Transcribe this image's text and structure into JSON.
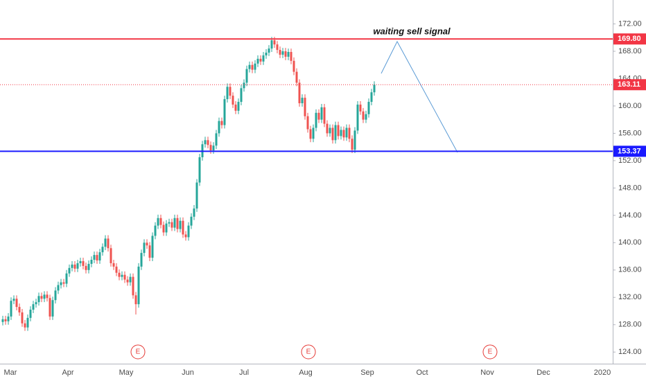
{
  "chart_data": {
    "type": "candlestick",
    "values": [
      [
        128.4,
        129.3,
        127.9,
        128.8
      ],
      [
        128.8,
        129.3,
        128.0,
        128.5
      ],
      [
        128.5,
        129.7,
        128.0,
        129.2
      ],
      [
        129.2,
        132.0,
        128.7,
        131.5
      ],
      [
        131.5,
        132.3,
        131.0,
        131.8
      ],
      [
        131.8,
        132.3,
        130.1,
        130.6
      ],
      [
        130.6,
        131.1,
        129.3,
        129.8
      ],
      [
        129.8,
        130.3,
        127.7,
        128.2
      ],
      [
        128.2,
        128.7,
        127.1,
        127.6
      ],
      [
        127.6,
        129.5,
        127.1,
        129.0
      ],
      [
        129.0,
        130.7,
        128.5,
        130.2
      ],
      [
        130.2,
        131.5,
        129.7,
        131.0
      ],
      [
        131.0,
        131.8,
        130.5,
        131.3
      ],
      [
        131.3,
        132.7,
        130.8,
        132.2
      ],
      [
        132.2,
        132.7,
        131.3,
        131.8
      ],
      [
        131.8,
        132.9,
        131.3,
        132.4
      ],
      [
        132.4,
        132.9,
        131.4,
        131.9
      ],
      [
        131.9,
        132.4,
        128.7,
        129.2
      ],
      [
        129.2,
        132.1,
        128.7,
        131.6
      ],
      [
        131.6,
        133.5,
        131.1,
        133.0
      ],
      [
        133.0,
        134.3,
        132.5,
        133.8
      ],
      [
        133.8,
        134.7,
        133.3,
        134.2
      ],
      [
        134.2,
        134.7,
        133.5,
        134.0
      ],
      [
        134.0,
        136.0,
        133.5,
        135.5
      ],
      [
        135.5,
        136.8,
        135.0,
        136.3
      ],
      [
        136.3,
        137.3,
        135.8,
        136.8
      ],
      [
        136.8,
        137.3,
        135.7,
        136.2
      ],
      [
        136.2,
        137.5,
        135.7,
        137.0
      ],
      [
        137.0,
        137.8,
        136.5,
        137.3
      ],
      [
        137.3,
        137.8,
        136.1,
        136.6
      ],
      [
        136.6,
        137.1,
        135.5,
        136.0
      ],
      [
        136.0,
        137.4,
        135.5,
        136.9
      ],
      [
        136.9,
        138.0,
        136.4,
        137.5
      ],
      [
        137.5,
        138.7,
        137.0,
        138.2
      ],
      [
        138.2,
        138.7,
        136.9,
        137.4
      ],
      [
        137.4,
        139.1,
        136.9,
        138.6
      ],
      [
        138.6,
        139.9,
        138.1,
        139.4
      ],
      [
        139.4,
        141.1,
        138.9,
        140.6
      ],
      [
        140.6,
        141.1,
        138.7,
        139.2
      ],
      [
        139.2,
        139.7,
        136.5,
        137.0
      ],
      [
        137.0,
        137.5,
        136.0,
        136.5
      ],
      [
        136.5,
        137.0,
        135.1,
        135.6
      ],
      [
        135.6,
        136.1,
        134.5,
        135.0
      ],
      [
        135.0,
        135.8,
        134.5,
        135.3
      ],
      [
        135.3,
        135.8,
        134.1,
        134.6
      ],
      [
        134.6,
        135.1,
        133.7,
        134.2
      ],
      [
        134.2,
        135.5,
        133.7,
        135.0
      ],
      [
        135.0,
        135.5,
        131.8,
        132.3
      ],
      [
        132.3,
        132.8,
        129.5,
        131.0
      ],
      [
        131.0,
        137.0,
        130.5,
        136.5
      ],
      [
        136.5,
        139.0,
        136.0,
        138.5
      ],
      [
        138.5,
        140.5,
        138.0,
        140.0
      ],
      [
        140.0,
        140.5,
        139.1,
        139.6
      ],
      [
        139.6,
        140.1,
        137.3,
        137.8
      ],
      [
        137.8,
        141.5,
        137.3,
        141.0
      ],
      [
        141.0,
        143.0,
        140.5,
        142.5
      ],
      [
        142.5,
        144.1,
        142.0,
        143.6
      ],
      [
        143.6,
        144.1,
        142.1,
        142.6
      ],
      [
        142.6,
        143.1,
        141.0,
        141.5
      ],
      [
        141.5,
        143.3,
        141.0,
        142.8
      ],
      [
        142.8,
        143.5,
        142.3,
        143.0
      ],
      [
        143.0,
        143.5,
        141.7,
        142.2
      ],
      [
        142.2,
        144.1,
        141.7,
        143.6
      ],
      [
        143.6,
        144.1,
        141.5,
        142.0
      ],
      [
        142.0,
        143.7,
        141.5,
        143.2
      ],
      [
        143.2,
        143.7,
        140.7,
        141.2
      ],
      [
        141.2,
        141.7,
        140.3,
        140.8
      ],
      [
        140.8,
        143.0,
        140.3,
        142.5
      ],
      [
        142.5,
        144.3,
        142.0,
        143.8
      ],
      [
        143.8,
        145.5,
        143.3,
        145.0
      ],
      [
        145.0,
        149.3,
        144.5,
        148.8
      ],
      [
        148.8,
        153.0,
        148.3,
        152.5
      ],
      [
        152.5,
        154.9,
        152.0,
        154.4
      ],
      [
        154.4,
        155.5,
        153.9,
        155.0
      ],
      [
        155.0,
        155.5,
        153.8,
        154.3
      ],
      [
        154.3,
        154.8,
        153.0,
        153.5
      ],
      [
        153.5,
        154.7,
        153.0,
        154.2
      ],
      [
        154.2,
        156.5,
        153.7,
        156.0
      ],
      [
        156.0,
        158.3,
        155.5,
        157.8
      ],
      [
        157.8,
        158.3,
        156.7,
        157.2
      ],
      [
        157.2,
        161.5,
        156.7,
        161.0
      ],
      [
        161.0,
        163.3,
        160.5,
        162.8
      ],
      [
        162.8,
        163.3,
        161.0,
        161.5
      ],
      [
        161.5,
        162.0,
        159.7,
        160.2
      ],
      [
        160.2,
        160.7,
        158.8,
        159.3
      ],
      [
        159.3,
        161.1,
        158.8,
        160.6
      ],
      [
        160.6,
        163.1,
        160.1,
        162.6
      ],
      [
        162.6,
        163.9,
        162.1,
        163.4
      ],
      [
        163.4,
        165.9,
        162.9,
        165.4
      ],
      [
        165.4,
        166.5,
        164.9,
        166.0
      ],
      [
        166.0,
        166.5,
        164.8,
        165.3
      ],
      [
        165.3,
        166.7,
        164.8,
        166.2
      ],
      [
        166.2,
        167.4,
        165.7,
        166.9
      ],
      [
        166.9,
        167.4,
        166.0,
        166.5
      ],
      [
        166.5,
        167.9,
        166.0,
        167.4
      ],
      [
        167.4,
        168.3,
        166.9,
        167.8
      ],
      [
        167.8,
        168.9,
        167.3,
        168.4
      ],
      [
        168.4,
        170.1,
        167.9,
        169.6
      ],
      [
        169.6,
        170.1,
        168.5,
        169.0
      ],
      [
        169.0,
        169.5,
        167.7,
        168.2
      ],
      [
        168.2,
        168.7,
        167.0,
        167.5
      ],
      [
        167.5,
        168.5,
        167.0,
        168.0
      ],
      [
        168.0,
        168.5,
        166.7,
        167.2
      ],
      [
        167.2,
        168.4,
        166.7,
        167.9
      ],
      [
        167.9,
        168.4,
        166.1,
        166.6
      ],
      [
        166.6,
        167.1,
        164.5,
        165.0
      ],
      [
        165.0,
        165.5,
        162.9,
        163.4
      ],
      [
        163.4,
        163.9,
        159.9,
        160.4
      ],
      [
        160.4,
        161.7,
        159.9,
        161.2
      ],
      [
        161.2,
        161.7,
        158.0,
        158.5
      ],
      [
        158.5,
        159.0,
        156.1,
        156.6
      ],
      [
        156.6,
        157.1,
        154.7,
        155.2
      ],
      [
        155.2,
        157.3,
        154.7,
        156.8
      ],
      [
        156.8,
        159.5,
        156.3,
        159.0
      ],
      [
        159.0,
        159.5,
        157.5,
        158.0
      ],
      [
        158.0,
        160.3,
        157.5,
        159.8
      ],
      [
        159.8,
        160.3,
        156.9,
        157.4
      ],
      [
        157.4,
        157.9,
        155.5,
        156.0
      ],
      [
        156.0,
        157.3,
        155.5,
        156.8
      ],
      [
        156.8,
        157.3,
        154.5,
        155.0
      ],
      [
        155.0,
        157.7,
        154.5,
        157.2
      ],
      [
        157.2,
        157.7,
        155.1,
        155.6
      ],
      [
        155.6,
        157.0,
        155.1,
        156.5
      ],
      [
        156.5,
        157.0,
        154.9,
        155.4
      ],
      [
        155.4,
        157.3,
        154.9,
        156.8
      ],
      [
        156.8,
        157.3,
        154.7,
        155.2
      ],
      [
        155.2,
        155.7,
        153.1,
        153.6
      ],
      [
        153.6,
        156.9,
        153.1,
        156.4
      ],
      [
        156.4,
        160.7,
        155.9,
        160.2
      ],
      [
        160.2,
        160.7,
        158.7,
        159.2
      ],
      [
        159.2,
        159.7,
        157.5,
        158.0
      ],
      [
        158.0,
        159.3,
        157.5,
        158.8
      ],
      [
        158.8,
        161.1,
        158.3,
        160.6
      ],
      [
        160.6,
        162.5,
        160.1,
        162.0
      ],
      [
        162.0,
        163.6,
        161.5,
        163.11
      ]
    ],
    "up_color": "#26a69a",
    "down_color": "#ef5350",
    "ylim": [
      122.3,
      175.5
    ],
    "yticks": [
      {
        "value": 124,
        "label": "124.00"
      },
      {
        "value": 128,
        "label": "128.00"
      },
      {
        "value": 132,
        "label": "132.00"
      },
      {
        "value": 136,
        "label": "136.00"
      },
      {
        "value": 140,
        "label": "140.00"
      },
      {
        "value": 144,
        "label": "144.00"
      },
      {
        "value": 148,
        "label": "148.00"
      },
      {
        "value": 152,
        "label": "152.00"
      },
      {
        "value": 156,
        "label": "156.00"
      },
      {
        "value": 160,
        "label": "160.00"
      },
      {
        "value": 164,
        "label": "164.00"
      },
      {
        "value": 168,
        "label": "168.00"
      },
      {
        "value": 172,
        "label": "172.00"
      }
    ],
    "x_labels": [
      "Mar",
      "Apr",
      "May",
      "Jun",
      "Jul",
      "Aug",
      "Sep",
      "Oct",
      "Nov",
      "Dec",
      "2020"
    ],
    "levels": [
      {
        "value": 169.8,
        "label": "169.80",
        "color": "#f23645",
        "style": "solid"
      },
      {
        "value": 163.11,
        "label": "163.11",
        "color": "#f23645",
        "style": "dotted"
      },
      {
        "value": 153.37,
        "label": "153.37",
        "color": "#1a1aff",
        "style": "solid"
      }
    ],
    "annotation": "waiting sell signal",
    "event_markers": [
      "E",
      "E",
      "E"
    ]
  }
}
